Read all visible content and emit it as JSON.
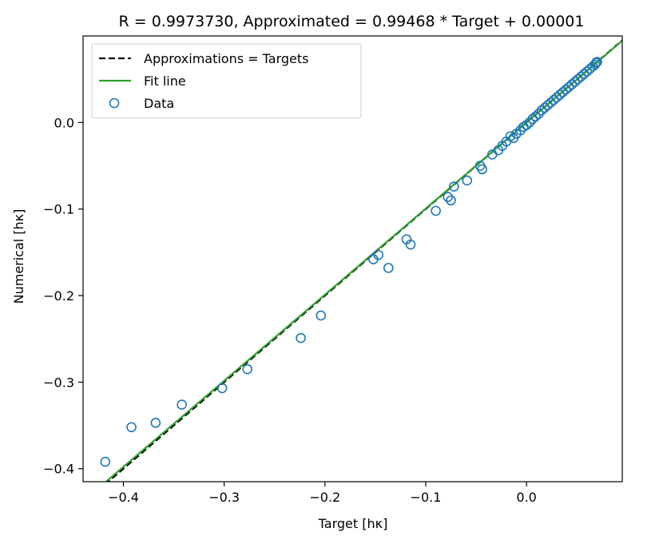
{
  "chart_data": {
    "type": "scatter",
    "title": "R = 0.9973730, Approximated = 0.99468 * Target + 0.00001",
    "xlabel": "Target [hκ]",
    "ylabel": "Numerical [hκ]",
    "xlim": [
      -0.44,
      0.095
    ],
    "ylim": [
      -0.415,
      0.1
    ],
    "xticks": [
      -0.4,
      -0.3,
      -0.2,
      -0.1,
      0.0
    ],
    "xtick_labels": [
      "−0.4",
      "−0.3",
      "−0.2",
      "−0.1",
      "0.0"
    ],
    "yticks": [
      -0.4,
      -0.3,
      -0.2,
      -0.1,
      0.0
    ],
    "ytick_labels": [
      "−0.4",
      "−0.3",
      "−0.2",
      "−0.1",
      "0.0"
    ],
    "grid": false,
    "legend_position": "upper-left",
    "legend": [
      {
        "label": "Approximations = Targets",
        "style": "dashed-line",
        "color": "#000000"
      },
      {
        "label": "Fit line",
        "style": "solid-line",
        "color": "#2ca02c"
      },
      {
        "label": "Data",
        "style": "open-circle",
        "color": "#1f77b4"
      }
    ],
    "series": [
      {
        "name": "Approximations = Targets",
        "kind": "line",
        "slope": 1.0,
        "intercept": 0.0,
        "color": "#000000",
        "dash": true
      },
      {
        "name": "Fit line",
        "kind": "line",
        "slope": 0.99468,
        "intercept": 1e-05,
        "color": "#2ca02c",
        "dash": false
      },
      {
        "name": "Data",
        "kind": "scatter",
        "color": "#1f77b4",
        "points": [
          [
            -0.418,
            -0.392
          ],
          [
            -0.392,
            -0.352
          ],
          [
            -0.368,
            -0.347
          ],
          [
            -0.342,
            -0.326
          ],
          [
            -0.302,
            -0.307
          ],
          [
            -0.277,
            -0.285
          ],
          [
            -0.224,
            -0.249
          ],
          [
            -0.204,
            -0.223
          ],
          [
            -0.152,
            -0.158
          ],
          [
            -0.147,
            -0.153
          ],
          [
            -0.137,
            -0.168
          ],
          [
            -0.119,
            -0.135
          ],
          [
            -0.115,
            -0.141
          ],
          [
            -0.09,
            -0.102
          ],
          [
            -0.078,
            -0.086
          ],
          [
            -0.075,
            -0.09
          ],
          [
            -0.072,
            -0.074
          ],
          [
            -0.059,
            -0.067
          ],
          [
            -0.046,
            -0.05
          ],
          [
            -0.044,
            -0.054
          ],
          [
            -0.034,
            -0.037
          ],
          [
            -0.028,
            -0.032
          ],
          [
            -0.024,
            -0.027
          ],
          [
            -0.02,
            -0.022
          ],
          [
            -0.016,
            -0.016
          ],
          [
            -0.013,
            -0.018
          ],
          [
            -0.01,
            -0.013
          ],
          [
            -0.006,
            -0.009
          ],
          [
            -0.003,
            -0.005
          ],
          [
            0.0,
            -0.003
          ],
          [
            0.003,
            0.0
          ],
          [
            0.006,
            0.004
          ],
          [
            0.009,
            0.007
          ],
          [
            0.012,
            0.01
          ],
          [
            0.015,
            0.014
          ],
          [
            0.018,
            0.017
          ],
          [
            0.021,
            0.02
          ],
          [
            0.024,
            0.023
          ],
          [
            0.027,
            0.026
          ],
          [
            0.03,
            0.029
          ],
          [
            0.033,
            0.032
          ],
          [
            0.036,
            0.035
          ],
          [
            0.039,
            0.038
          ],
          [
            0.042,
            0.041
          ],
          [
            0.045,
            0.044
          ],
          [
            0.048,
            0.047
          ],
          [
            0.051,
            0.05
          ],
          [
            0.054,
            0.053
          ],
          [
            0.057,
            0.056
          ],
          [
            0.06,
            0.059
          ],
          [
            0.063,
            0.062
          ],
          [
            0.066,
            0.065
          ],
          [
            0.068,
            0.067
          ],
          [
            0.069,
            0.069
          ],
          [
            0.07,
            0.07
          ]
        ]
      }
    ]
  }
}
